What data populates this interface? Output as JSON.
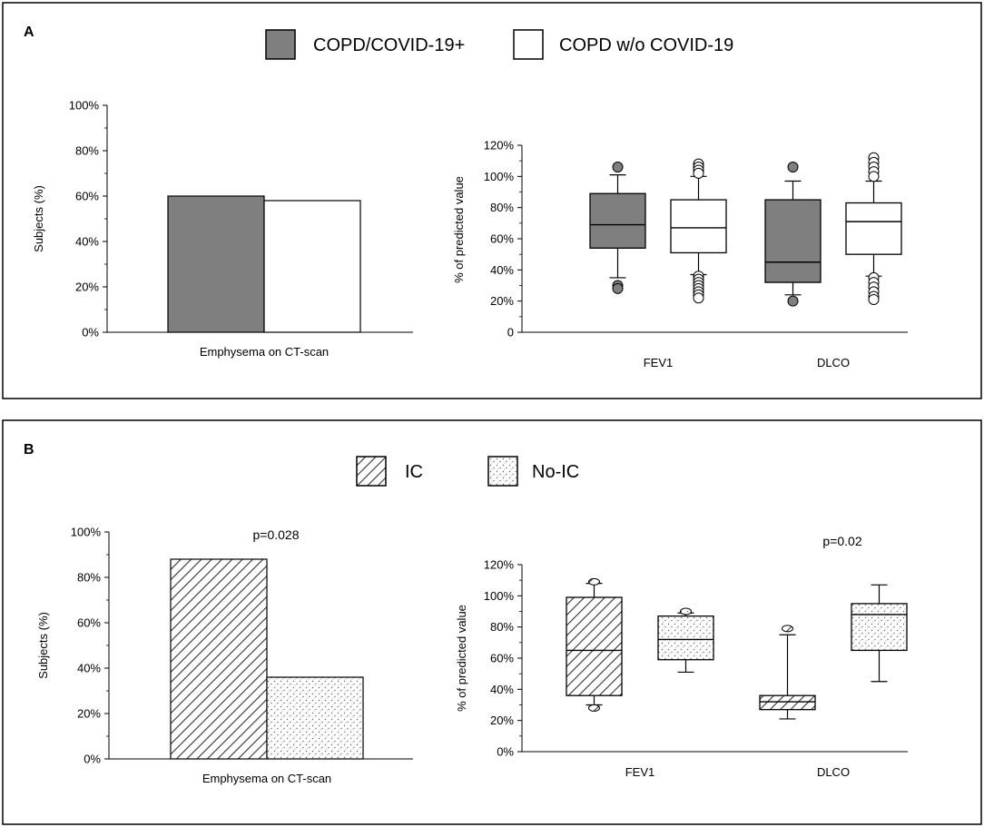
{
  "panels": [
    {
      "label": "A",
      "legend": [
        {
          "label": "COPD/COVID-19+",
          "fill": "gray"
        },
        {
          "label": "COPD w/o COVID-19",
          "fill": "white"
        }
      ]
    },
    {
      "label": "B",
      "legend": [
        {
          "label": "IC",
          "fill": "hatch"
        },
        {
          "label": "No-IC",
          "fill": "dots"
        }
      ]
    }
  ],
  "colors": {
    "gray": "#7f7f7f",
    "white": "#ffffff",
    "stroke": "#000000"
  },
  "chart_data": [
    {
      "id": "A-bar",
      "panel": "A",
      "type": "bar",
      "ylabel": "Subjects (%)",
      "ylim": [
        0,
        100
      ],
      "yticks": [
        "0%",
        "20%",
        "40%",
        "60%",
        "80%",
        "100%"
      ],
      "categories": [
        "Emphysema on CT-scan"
      ],
      "series": [
        {
          "name": "COPD/COVID-19+",
          "values": [
            60
          ]
        },
        {
          "name": "COPD w/o COVID-19",
          "values": [
            58
          ]
        }
      ]
    },
    {
      "id": "A-box",
      "panel": "A",
      "type": "box",
      "ylabel": "% of predicted value",
      "ylim": [
        0,
        120
      ],
      "yticks": [
        "0",
        "20%",
        "40%",
        "60%",
        "80%",
        "100%",
        "120%"
      ],
      "categories": [
        "FEV1",
        "DLCO"
      ],
      "series": [
        {
          "name": "COPD/COVID-19+",
          "boxes": [
            {
              "min": 35,
              "q1": 54,
              "median": 69,
              "q3": 89,
              "max": 101,
              "outliers": [
                106,
                30,
                28
              ]
            },
            {
              "min": 24,
              "q1": 32,
              "median": 45,
              "q3": 85,
              "max": 97,
              "outliers": [
                106,
                20
              ]
            }
          ]
        },
        {
          "name": "COPD w/o COVID-19",
          "boxes": [
            {
              "min": 37,
              "q1": 51,
              "median": 67,
              "q3": 85,
              "max": 100,
              "outliers": [
                108,
                106,
                104,
                102,
                36,
                34,
                32,
                30,
                28,
                26,
                24,
                22
              ]
            },
            {
              "min": 36,
              "q1": 50,
              "median": 71,
              "q3": 83,
              "max": 97,
              "outliers": [
                112,
                109,
                106,
                103,
                100,
                35,
                32,
                29,
                26,
                23,
                21
              ]
            }
          ]
        }
      ]
    },
    {
      "id": "B-bar",
      "panel": "B",
      "type": "bar",
      "ylabel": "Subjects (%)",
      "ylim": [
        0,
        100
      ],
      "yticks": [
        "0%",
        "20%",
        "40%",
        "60%",
        "80%",
        "100%"
      ],
      "categories": [
        "Emphysema on CT-scan"
      ],
      "annotation": "p=0.028",
      "series": [
        {
          "name": "IC",
          "values": [
            88
          ]
        },
        {
          "name": "No-IC",
          "values": [
            36
          ]
        }
      ]
    },
    {
      "id": "B-box",
      "panel": "B",
      "type": "box",
      "ylabel": "% of predicted value",
      "ylim": [
        0,
        120
      ],
      "yticks": [
        "0%",
        "20%",
        "40%",
        "60%",
        "80%",
        "100%",
        "120%"
      ],
      "categories": [
        "FEV1",
        "DLCO"
      ],
      "annotation": "p=0.02",
      "series": [
        {
          "name": "IC",
          "boxes": [
            {
              "min": 30,
              "q1": 36,
              "median": 65,
              "q3": 99,
              "max": 108,
              "outliers": [
                109,
                28
              ]
            },
            {
              "min": 21,
              "q1": 27,
              "median": 32,
              "q3": 36,
              "max": 75,
              "outliers": [
                79
              ]
            }
          ]
        },
        {
          "name": "No-IC",
          "boxes": [
            {
              "min": 51,
              "q1": 59,
              "median": 72,
              "q3": 87,
              "max": 89,
              "outliers": [
                90
              ]
            },
            {
              "min": 45,
              "q1": 65,
              "median": 88,
              "q3": 95,
              "max": 107,
              "outliers": []
            }
          ]
        }
      ]
    }
  ]
}
